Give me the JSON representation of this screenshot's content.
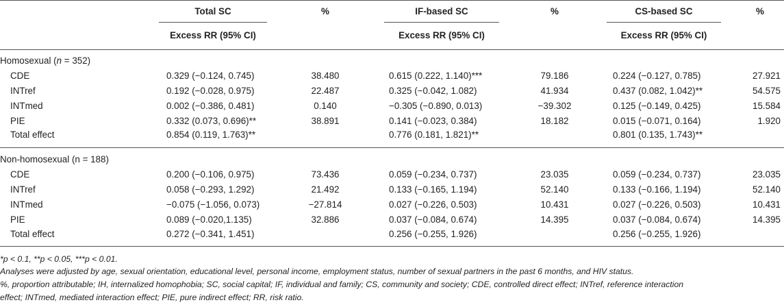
{
  "header": {
    "total_sc": "Total SC",
    "if_sc": "IF-based SC",
    "cs_sc": "CS-based SC",
    "pct": "%",
    "excess_rr": "Excess RR (95% CI)"
  },
  "groups": [
    {
      "label_prefix": "Homosexual (",
      "label_n": "n",
      "label_suffix": " = 352)",
      "rows": [
        {
          "name": "CDE",
          "total": "0.329 (−0.124, 0.745)",
          "total_pct": "38.480",
          "if": "0.615 (0.222, 1.140)***",
          "if_pct": "79.186",
          "cs": "0.224 (−0.127, 0.785)",
          "cs_pct": "27.921"
        },
        {
          "name": "INTref",
          "total": "0.192 (−0.028, 0.975)",
          "total_pct": "22.487",
          "if": "0.325 (−0.042, 1.082)",
          "if_pct": "41.934",
          "cs": "0.437 (0.082, 1.042)**",
          "cs_pct": "54.575"
        },
        {
          "name": "INTmed",
          "total": "0.002 (−0.386, 0.481)",
          "total_pct": "0.140",
          "if": "−0.305 (−0.890, 0.013)",
          "if_pct": "−39.302",
          "cs": "0.125 (−0.149, 0.425)",
          "cs_pct": "15.584"
        },
        {
          "name": "PIE",
          "total": "0.332 (0.073, 0.696)**",
          "total_pct": "38.891",
          "if": "0.141 (−0.023, 0.384)",
          "if_pct": "18.182",
          "cs": "0.015 (−0.071, 0.164)",
          "cs_pct": "1.920"
        },
        {
          "name": "Total effect",
          "total": "0.854 (0.119, 1.763)**",
          "total_pct": "",
          "if": "0.776 (0.181, 1.821)**",
          "if_pct": "",
          "cs": "0.801 (0.135, 1.743)**",
          "cs_pct": ""
        }
      ]
    },
    {
      "label_prefix": "Non-homosexual (n = 188)",
      "label_n": "",
      "label_suffix": "",
      "rows": [
        {
          "name": "CDE",
          "total": "0.200 (−0.106, 0.975)",
          "total_pct": "73.436",
          "if": "0.059 (−0.234, 0.737)",
          "if_pct": "23.035",
          "cs": "0.059 (−0.234, 0.737)",
          "cs_pct": "23.035"
        },
        {
          "name": "INTref",
          "total": "0.058 (−0.293, 1.292)",
          "total_pct": "21.492",
          "if": "0.133 (−0.165, 1.194)",
          "if_pct": "52.140",
          "cs": "0.133 (−0.166, 1.194)",
          "cs_pct": "52.140"
        },
        {
          "name": "INTmed",
          "total": "−0.075 (−1.056, 0.073)",
          "total_pct": "−27.814",
          "if": "0.027 (−0.226, 0.503)",
          "if_pct": "10.431",
          "cs": "0.027 (−0.226, 0.503)",
          "cs_pct": "10.431"
        },
        {
          "name": "PIE",
          "total": "0.089 (−0.020,1.135)",
          "total_pct": "32.886",
          "if": "0.037 (−0.084, 0.674)",
          "if_pct": "14.395",
          "cs": "0.037 (−0.084, 0.674)",
          "cs_pct": "14.395"
        },
        {
          "name": "Total effect",
          "total": "0.272 (−0.341, 1.451)",
          "total_pct": "",
          "if": "0.256 (−0.255, 1.926)",
          "if_pct": "",
          "cs": "0.256 (−0.255, 1.926)",
          "cs_pct": ""
        }
      ]
    }
  ],
  "footnotes": {
    "sig": "*p < 0.1, **p < 0.05, ***p < 0.01.",
    "adjusted": "Analyses were adjusted by age, sexual orientation, educational level, personal income, employment status, number of sexual partners in the past 6 months, and HIV status.",
    "abbrev1": "%, proportion attributable; IH, internalized homophobia; SC, social capital; IF, individual and family; CS, community and society; CDE, controlled direct effect; INTref, reference interaction",
    "abbrev2": "effect; INTmed, mediated interaction effect; PIE, pure indirect effect; RR, risk ratio."
  }
}
